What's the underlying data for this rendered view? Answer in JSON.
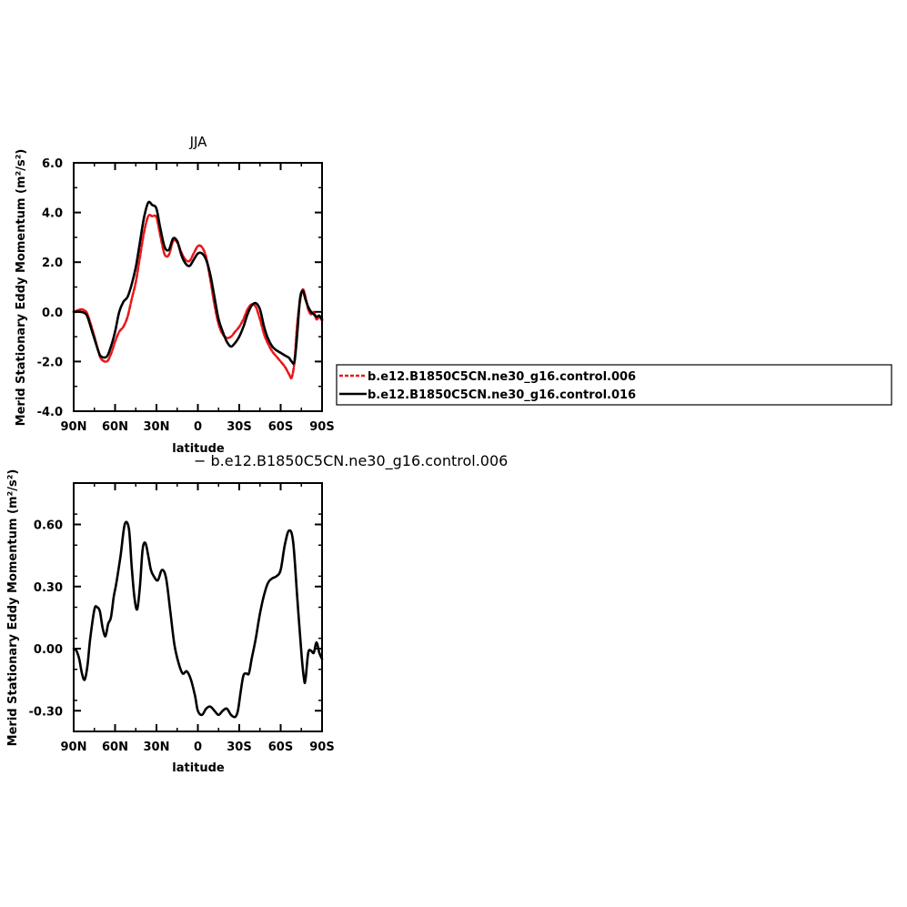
{
  "colors": {
    "series_a": "#e8191c",
    "series_b": "#000000"
  },
  "chart_data": [
    {
      "type": "line",
      "title": "JJA",
      "subtitle": "",
      "xlabel": "latitude",
      "ylabel": "Merid Stationary Eddy Momentum (m²/s²)",
      "xlim": [
        -90,
        90
      ],
      "ylim": [
        -4,
        6
      ],
      "xticks": [
        -90,
        -60,
        -30,
        0,
        30,
        60,
        90
      ],
      "xtick_labels": [
        "90N",
        "60N",
        "30N",
        "0",
        "30S",
        "60S",
        "90S"
      ],
      "yticks": [
        -4,
        -2,
        0,
        2,
        4,
        6
      ],
      "ytick_labels": [
        "-4.0",
        "-2.0",
        "0.0",
        "2.0",
        "4.0",
        "6.0"
      ],
      "grid": false,
      "legend_position": "right",
      "series": [
        {
          "name": "b.e12.B1850C5CN.ne30_g16.control.006",
          "style": "dashed",
          "color": "#e8191c",
          "x": [
            -90,
            -85,
            -82,
            -80,
            -76,
            -72,
            -70,
            -66,
            -63,
            -60,
            -57,
            -54,
            -51,
            -48,
            -45,
            -42,
            -39,
            -36,
            -33,
            -30,
            -27,
            -24,
            -21,
            -18,
            -15,
            -12,
            -9,
            -6,
            -3,
            0,
            3,
            6,
            9,
            12,
            15,
            18,
            21,
            24,
            27,
            30,
            33,
            36,
            39,
            42,
            45,
            48,
            51,
            54,
            57,
            60,
            63,
            66,
            68,
            70,
            72,
            74,
            76,
            78,
            80,
            82,
            84,
            86,
            88,
            90
          ],
          "y": [
            0,
            0.1,
            0.05,
            -0.1,
            -0.8,
            -1.6,
            -1.9,
            -2.0,
            -1.7,
            -1.2,
            -0.8,
            -0.6,
            -0.2,
            0.5,
            1.2,
            2.2,
            3.2,
            3.85,
            3.85,
            3.8,
            3.0,
            2.3,
            2.3,
            2.85,
            2.8,
            2.4,
            2.1,
            2.05,
            2.35,
            2.65,
            2.6,
            2.2,
            1.3,
            0.3,
            -0.5,
            -0.9,
            -1.05,
            -1.0,
            -0.8,
            -0.6,
            -0.3,
            0.1,
            0.3,
            0.2,
            -0.3,
            -0.9,
            -1.3,
            -1.6,
            -1.8,
            -2.0,
            -2.2,
            -2.5,
            -2.65,
            -2.0,
            -0.5,
            0.4,
            0.9,
            0.6,
            0.1,
            -0.1,
            0.0,
            -0.3,
            -0.2,
            -0.35
          ]
        },
        {
          "name": "b.e12.B1850C5CN.ne30_g16.control.016",
          "style": "solid",
          "color": "#000000",
          "x": [
            -90,
            -85,
            -82,
            -80,
            -76,
            -72,
            -70,
            -66,
            -63,
            -60,
            -57,
            -54,
            -51,
            -48,
            -45,
            -42,
            -39,
            -36,
            -33,
            -30,
            -27,
            -24,
            -21,
            -18,
            -15,
            -12,
            -9,
            -6,
            -3,
            0,
            3,
            6,
            9,
            12,
            15,
            18,
            21,
            24,
            27,
            30,
            33,
            36,
            39,
            42,
            45,
            48,
            51,
            54,
            57,
            60,
            63,
            66,
            68,
            70,
            72,
            74,
            76,
            78,
            80,
            82,
            84,
            86,
            88,
            90
          ],
          "y": [
            0,
            0,
            -0.05,
            -0.2,
            -0.9,
            -1.6,
            -1.8,
            -1.8,
            -1.4,
            -0.8,
            0.0,
            0.4,
            0.6,
            1.1,
            1.8,
            2.8,
            3.8,
            4.4,
            4.3,
            4.15,
            3.3,
            2.6,
            2.5,
            2.95,
            2.85,
            2.3,
            1.95,
            1.85,
            2.1,
            2.35,
            2.35,
            2.1,
            1.5,
            0.6,
            -0.3,
            -0.8,
            -1.2,
            -1.4,
            -1.25,
            -1.0,
            -0.6,
            -0.1,
            0.25,
            0.35,
            0.1,
            -0.6,
            -1.1,
            -1.4,
            -1.55,
            -1.65,
            -1.75,
            -1.85,
            -2.0,
            -2.0,
            -0.9,
            0.5,
            0.85,
            0.5,
            0.2,
            0.0,
            -0.1,
            -0.2,
            -0.15,
            -0.3
          ]
        }
      ]
    },
    {
      "type": "line",
      "title": "−  b.e12.B1850C5CN.ne30_g16.control.006",
      "xlabel": "latitude",
      "ylabel": "Merid Stationary Eddy Momentum (m²/s²)",
      "xlim": [
        -90,
        90
      ],
      "ylim": [
        -0.4,
        0.8
      ],
      "xticks": [
        -90,
        -60,
        -30,
        0,
        30,
        60,
        90
      ],
      "xtick_labels": [
        "90N",
        "60N",
        "30N",
        "0",
        "30S",
        "60S",
        "90S"
      ],
      "yticks": [
        -0.3,
        0,
        0.3,
        0.6
      ],
      "ytick_labels": [
        "-0.30",
        "0.00",
        "0.30",
        "0.60"
      ],
      "grid": false,
      "series": [
        {
          "style": "solid",
          "color": "#000000",
          "x": [
            -90,
            -88,
            -86,
            -84,
            -82,
            -80,
            -78,
            -75,
            -73,
            -71,
            -69,
            -67,
            -65,
            -63,
            -61,
            -59,
            -56,
            -53,
            -50,
            -48,
            -46,
            -44,
            -42,
            -40,
            -38,
            -36,
            -34,
            -32,
            -29,
            -26,
            -23,
            -20,
            -17,
            -14,
            -11,
            -8,
            -5,
            -2,
            0,
            3,
            6,
            9,
            12,
            15,
            18,
            21,
            24,
            27,
            29,
            31,
            33,
            35,
            37,
            39,
            42,
            45,
            48,
            51,
            54,
            57,
            60,
            63,
            66,
            69,
            72,
            75,
            77,
            78,
            80,
            82,
            84,
            86,
            88,
            90
          ],
          "y": [
            0,
            -0.01,
            -0.05,
            -0.12,
            -0.15,
            -0.08,
            0.05,
            0.19,
            0.2,
            0.18,
            0.1,
            0.06,
            0.12,
            0.15,
            0.25,
            0.32,
            0.45,
            0.6,
            0.58,
            0.4,
            0.25,
            0.19,
            0.3,
            0.48,
            0.51,
            0.45,
            0.38,
            0.35,
            0.33,
            0.38,
            0.34,
            0.18,
            0.02,
            -0.07,
            -0.12,
            -0.11,
            -0.15,
            -0.23,
            -0.3,
            -0.32,
            -0.29,
            -0.28,
            -0.3,
            -0.32,
            -0.3,
            -0.29,
            -0.32,
            -0.33,
            -0.3,
            -0.21,
            -0.13,
            -0.12,
            -0.12,
            -0.05,
            0.05,
            0.17,
            0.26,
            0.32,
            0.34,
            0.35,
            0.38,
            0.5,
            0.57,
            0.52,
            0.25,
            -0.02,
            -0.15,
            -0.15,
            -0.02,
            -0.01,
            -0.02,
            0.03,
            -0.02,
            -0.05
          ]
        }
      ]
    }
  ]
}
